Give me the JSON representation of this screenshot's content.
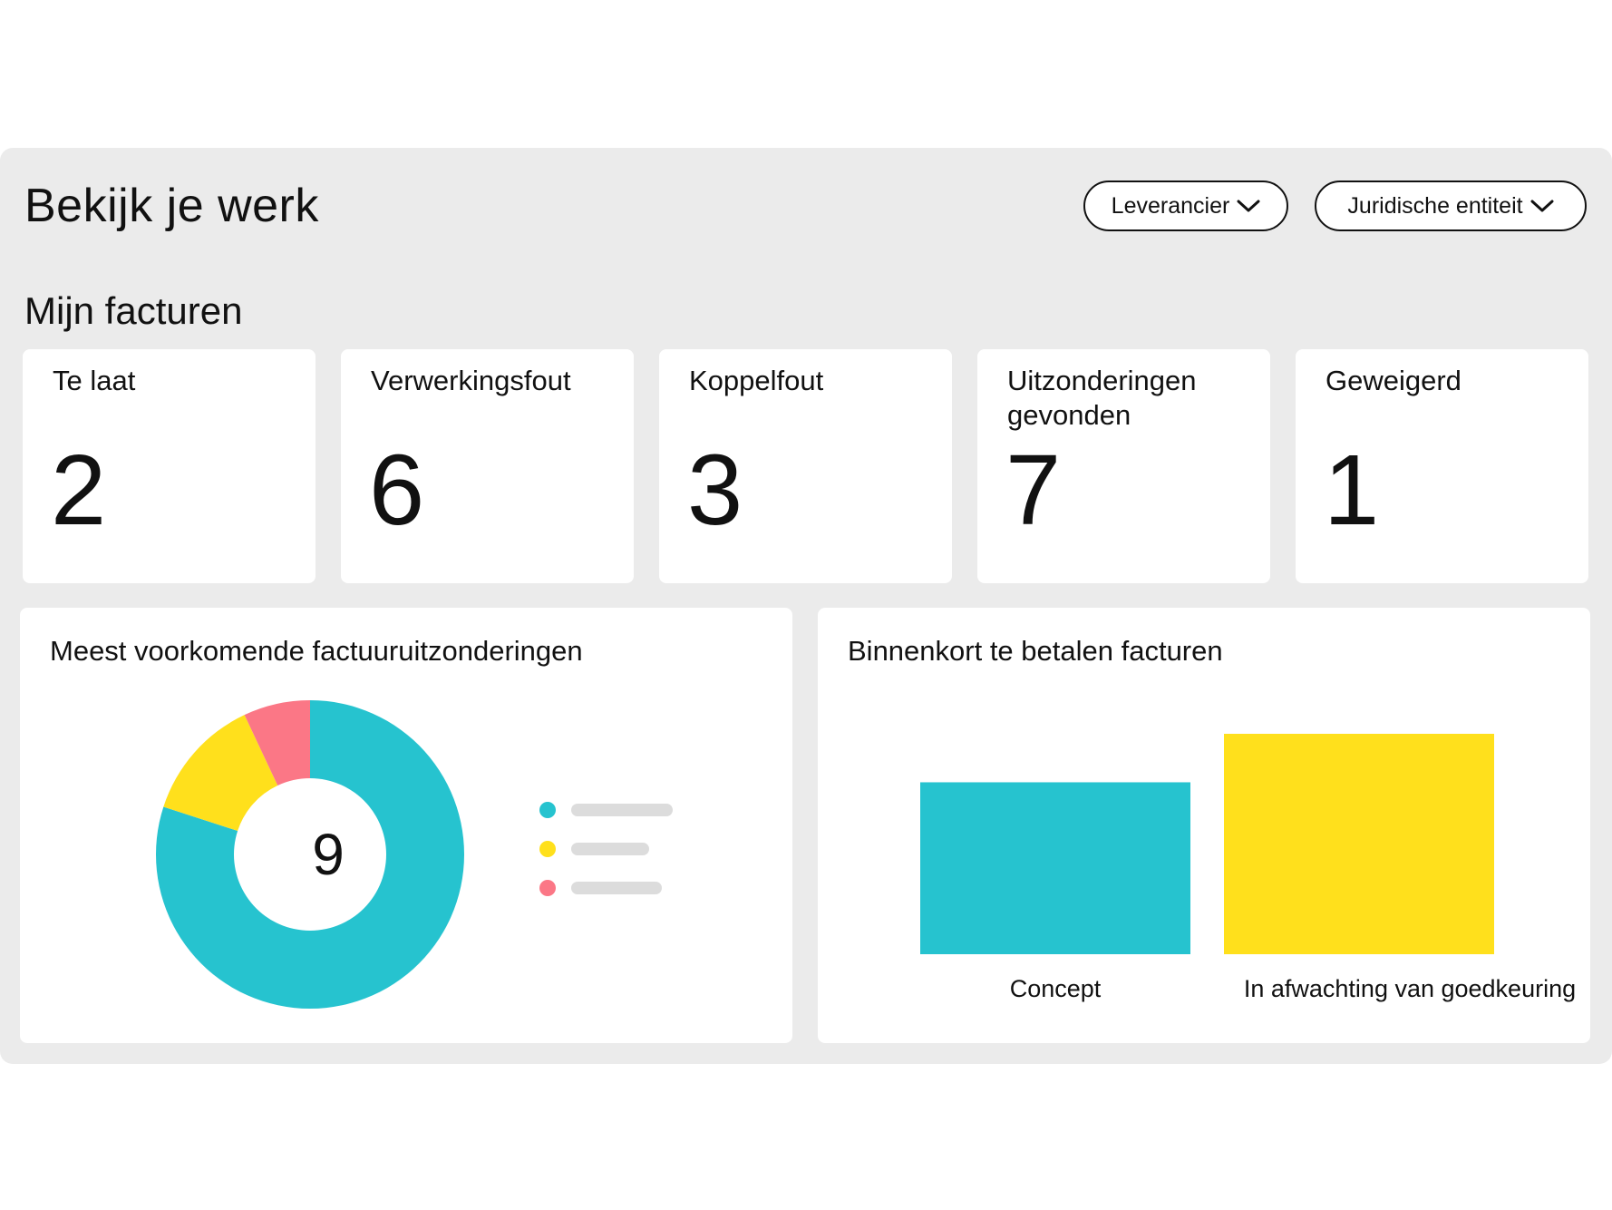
{
  "header": {
    "title": "Bekijk je werk",
    "filters": [
      {
        "label": "Leverancier",
        "icon": "chevron-down-icon"
      },
      {
        "label": "Juridische entiteit",
        "icon": "chevron-down-icon"
      }
    ]
  },
  "invoices": {
    "section_title": "Mijn facturen",
    "kpis": [
      {
        "label": "Te laat",
        "value": "2"
      },
      {
        "label": "Verwerkingsfout",
        "value": "6"
      },
      {
        "label": "Koppelfout",
        "value": "3"
      },
      {
        "label": "Uitzonderingen gevonden",
        "value": "7"
      },
      {
        "label": "Geweigerd",
        "value": "1"
      }
    ]
  },
  "colors": {
    "teal": "#26c3cf",
    "yellow": "#ffe01c",
    "pink": "#fb7786",
    "legend_bar": "#dcdcdc"
  },
  "exceptions_chart": {
    "title": "Meest voorkomende factuuruitzonderingen",
    "total": "9"
  },
  "payables_chart": {
    "title": "Binnenkort te betalen facturen"
  },
  "chart_data": [
    {
      "type": "pie",
      "style": "donut",
      "title": "Meest voorkomende factuuruitzonderingen",
      "center_label": "9",
      "values": [
        0.8,
        0.13,
        0.07
      ],
      "colors": [
        "#26c3cf",
        "#ffe01c",
        "#fb7786"
      ],
      "legend": "right",
      "legend_labels_visible": false
    },
    {
      "type": "bar",
      "title": "Binnenkort te betalen facturen",
      "categories": [
        "Concept",
        "In afwachting van goedkeuring"
      ],
      "values": [
        0.78,
        1.0
      ],
      "colors": [
        "#26c3cf",
        "#ffe01c"
      ],
      "axes_visible": false
    }
  ]
}
